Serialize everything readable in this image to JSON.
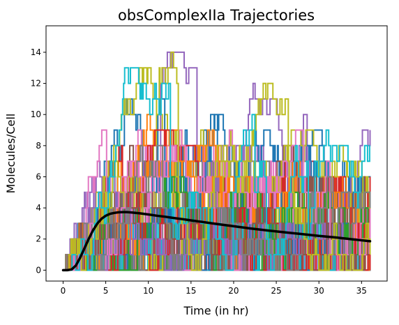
{
  "chart_data": {
    "type": "line",
    "title": "obsComplexIIa Trajectories",
    "xlabel": "Time (in hr)",
    "ylabel": "Molecules/Cell",
    "xlim": [
      -2.0,
      38.0
    ],
    "ylim": [
      -0.7,
      15.7
    ],
    "xticks": [
      0,
      5,
      10,
      15,
      20,
      25,
      30,
      35
    ],
    "yticks": [
      0,
      2,
      4,
      6,
      8,
      10,
      12,
      14
    ],
    "grid": false,
    "legend": "none",
    "trajectories": {
      "description": "many stochastic step trajectories",
      "colors": [
        "#1f77b4",
        "#ff7f0e",
        "#2ca02c",
        "#d62728",
        "#9467bd",
        "#8c564b",
        "#e377c2",
        "#7f7f7f",
        "#bcbd22",
        "#17becf"
      ],
      "x_range": [
        0,
        36
      ],
      "value_range": [
        0,
        15
      ],
      "peak_time": 7,
      "peak_max": 15
    },
    "series": [
      {
        "color": "#000000",
        "x": [
          0,
          0.5,
          1,
          1.5,
          2,
          2.5,
          3,
          3.5,
          4,
          4.5,
          5,
          5.5,
          6,
          6.5,
          7,
          7.5,
          8,
          8.5,
          9,
          10,
          11,
          12,
          13,
          14,
          15,
          16,
          18,
          20,
          22,
          24,
          26,
          28,
          30,
          32,
          34,
          36
        ],
        "values": [
          0,
          0,
          0.05,
          0.3,
          0.8,
          1.4,
          2.0,
          2.55,
          2.98,
          3.3,
          3.5,
          3.62,
          3.68,
          3.72,
          3.73,
          3.73,
          3.71,
          3.68,
          3.65,
          3.58,
          3.5,
          3.43,
          3.35,
          3.28,
          3.2,
          3.12,
          2.97,
          2.82,
          2.68,
          2.55,
          2.43,
          2.32,
          2.2,
          2.1,
          1.98,
          1.86
        ]
      }
    ]
  }
}
